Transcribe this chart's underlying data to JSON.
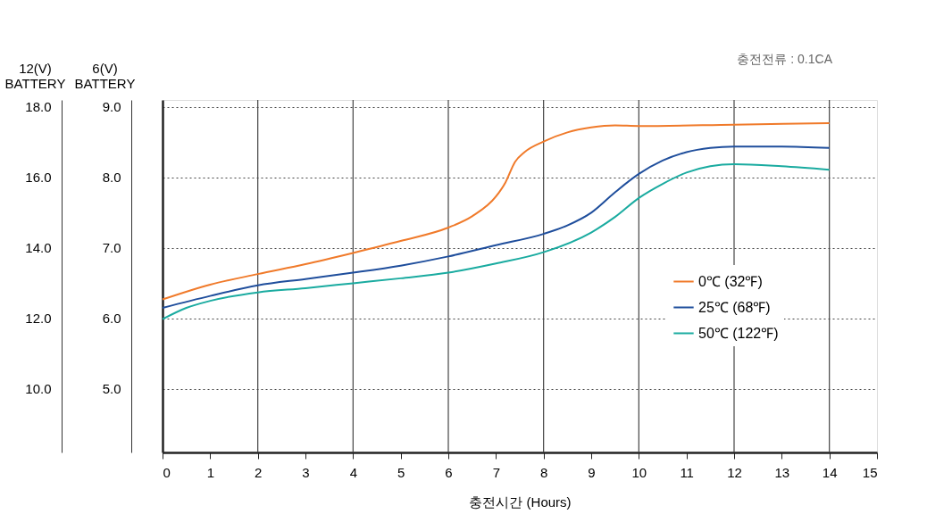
{
  "chart_data": {
    "type": "line",
    "xlabel": "충전시간 (Hours)",
    "ylabel": "6(V)\nBATTERY",
    "y2label": "12(V)\nBATTERY",
    "annotations": [
      "충전전류 : 0.1CA"
    ],
    "xlim": [
      0,
      15
    ],
    "xticks": [
      0,
      1,
      2,
      3,
      4,
      5,
      6,
      7,
      8,
      9,
      10,
      11,
      12,
      13,
      14,
      15
    ],
    "ylim": [
      4.1,
      9.1
    ],
    "yticks": [
      {
        "value": 5,
        "label": "5.0"
      },
      {
        "value": 6,
        "label": "6.0"
      },
      {
        "value": 7,
        "label": "7.0"
      },
      {
        "value": 8,
        "label": "8.0"
      },
      {
        "value": 9,
        "label": "9.0"
      }
    ],
    "y2lim": [
      8.2,
      18.2
    ],
    "y2ticks": [
      {
        "value": 10,
        "label": "10.0"
      },
      {
        "value": 12,
        "label": "12.0"
      },
      {
        "value": 14,
        "label": "14.0"
      },
      {
        "value": 16,
        "label": "16.0"
      },
      {
        "value": 18,
        "label": "18.0"
      }
    ],
    "grid": "y",
    "legend": "right",
    "line_style": "solid",
    "marker": "none",
    "ref_lines": [
      {
        "axis": "x",
        "value": 2,
        "color": "#444444"
      },
      {
        "axis": "x",
        "value": 4,
        "color": "#444444"
      },
      {
        "axis": "x",
        "value": 6,
        "color": "#444444"
      },
      {
        "axis": "x",
        "value": 8,
        "color": "#444444"
      },
      {
        "axis": "x",
        "value": 10,
        "color": "#444444"
      },
      {
        "axis": "x",
        "value": 12,
        "color": "#444444"
      },
      {
        "axis": "x",
        "value": 14,
        "color": "#444444"
      }
    ],
    "series": [
      {
        "name": "0℃ (32℉)",
        "color": "#f07a2a",
        "x": [
          0,
          1,
          2,
          3,
          4,
          5,
          6,
          6.5,
          7,
          7.2,
          7.4,
          7.6,
          8,
          8.5,
          9,
          9.5,
          10,
          12,
          14
        ],
        "values": [
          6.27,
          6.48,
          6.63,
          6.77,
          6.93,
          7.1,
          7.29,
          7.45,
          7.73,
          7.93,
          8.22,
          8.36,
          8.51,
          8.64,
          8.71,
          8.74,
          8.73,
          8.75,
          8.77
        ]
      },
      {
        "name": "25℃ (68℉)",
        "color": "#1f4e9c",
        "x": [
          0,
          1,
          2,
          3,
          4,
          5,
          6,
          7,
          8,
          8.5,
          9,
          9.5,
          10,
          10.5,
          11,
          11.5,
          12,
          13,
          14
        ],
        "values": [
          6.15,
          6.32,
          6.47,
          6.56,
          6.65,
          6.75,
          6.88,
          7.04,
          7.2,
          7.32,
          7.5,
          7.79,
          8.05,
          8.24,
          8.36,
          8.42,
          8.44,
          8.44,
          8.42
        ]
      },
      {
        "name": "50℃ (122℉)",
        "color": "#1aaba0",
        "x": [
          0,
          0.5,
          1,
          2,
          3,
          4,
          5,
          6,
          7,
          8,
          9,
          9.5,
          10,
          10.5,
          11,
          11.5,
          12,
          13,
          14
        ],
        "values": [
          5.99,
          6.15,
          6.25,
          6.37,
          6.43,
          6.5,
          6.57,
          6.65,
          6.78,
          6.94,
          7.22,
          7.44,
          7.71,
          7.91,
          8.07,
          8.16,
          8.19,
          8.16,
          8.11
        ]
      }
    ]
  }
}
